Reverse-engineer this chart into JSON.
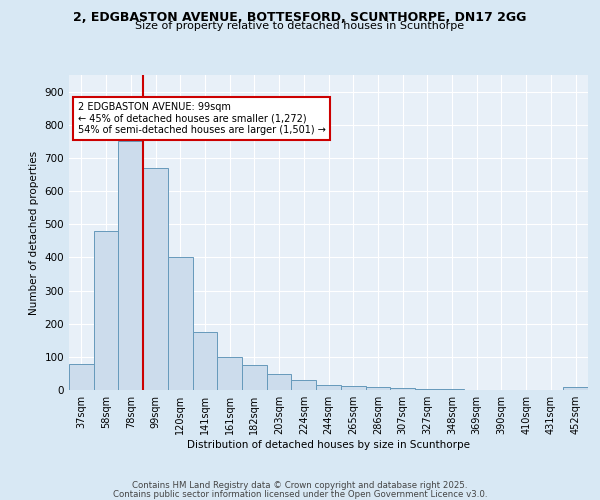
{
  "title_line1": "2, EDGBASTON AVENUE, BOTTESFORD, SCUNTHORPE, DN17 2GG",
  "title_line2": "Size of property relative to detached houses in Scunthorpe",
  "xlabel": "Distribution of detached houses by size in Scunthorpe",
  "ylabel": "Number of detached properties",
  "bar_labels": [
    "37sqm",
    "58sqm",
    "78sqm",
    "99sqm",
    "120sqm",
    "141sqm",
    "161sqm",
    "182sqm",
    "203sqm",
    "224sqm",
    "244sqm",
    "265sqm",
    "286sqm",
    "307sqm",
    "327sqm",
    "348sqm",
    "369sqm",
    "390sqm",
    "410sqm",
    "431sqm",
    "452sqm"
  ],
  "bar_values": [
    78,
    480,
    750,
    670,
    400,
    175,
    100,
    75,
    47,
    30,
    15,
    13,
    10,
    5,
    3,
    2,
    1,
    1,
    0,
    0,
    8
  ],
  "bar_color": "#ccdcec",
  "bar_edge_color": "#6699bb",
  "vline_x": 3,
  "vline_color": "#cc0000",
  "annotation_text": "2 EDGBASTON AVENUE: 99sqm\n← 45% of detached houses are smaller (1,272)\n54% of semi-detached houses are larger (1,501) →",
  "footnote1": "Contains HM Land Registry data © Crown copyright and database right 2025.",
  "footnote2": "Contains public sector information licensed under the Open Government Licence v3.0.",
  "ylim": [
    0,
    950
  ],
  "yticks": [
    0,
    100,
    200,
    300,
    400,
    500,
    600,
    700,
    800,
    900
  ],
  "background_color": "#d8e8f4",
  "plot_bg_color": "#e8f0f8",
  "grid_color": "#ffffff"
}
